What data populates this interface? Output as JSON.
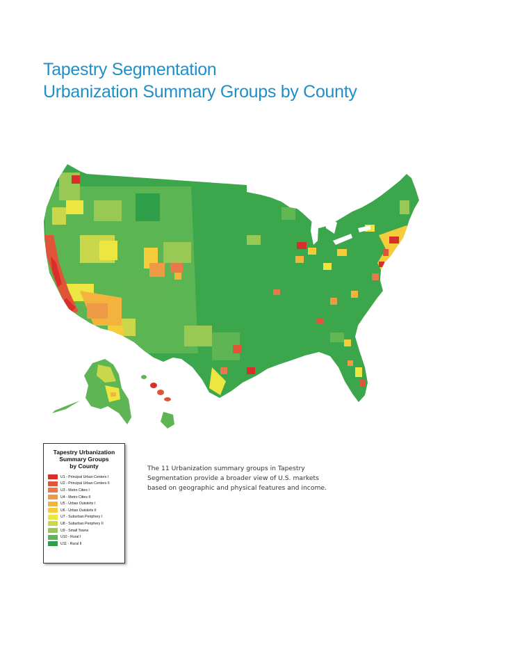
{
  "title": {
    "line1": "Tapestry Segmentation",
    "line2": "Urbanization Summary Groups by County"
  },
  "legend": {
    "title_line1": "Tapestry Urbanization",
    "title_line2": "Summary Groups",
    "title_line3": "by County",
    "items": [
      {
        "label": "U1 - Principal Urban Centers I",
        "color": "#d7302a"
      },
      {
        "label": "U2 - Principal Urban Centers II",
        "color": "#e0553a"
      },
      {
        "label": "U3 - Metro Cities I",
        "color": "#e8794a"
      },
      {
        "label": "U4 - Metro Cities II",
        "color": "#ef9a45"
      },
      {
        "label": "U5 - Urban Outskirts I",
        "color": "#f4b33c"
      },
      {
        "label": "U6 - Urban Outskirts II",
        "color": "#f5cd3a"
      },
      {
        "label": "U7 - Suburban Periphery I",
        "color": "#eee640"
      },
      {
        "label": "U8 - Suburban Periphery II",
        "color": "#c8d84a"
      },
      {
        "label": "U9 - Small Towns",
        "color": "#98c955"
      },
      {
        "label": "U10 - Rural I",
        "color": "#5fb553"
      },
      {
        "label": "U11 - Rural II",
        "color": "#2e9e48"
      }
    ]
  },
  "caption": {
    "line1": "The 11 Urbanization summary groups in Tapestry",
    "line2": "Segmentation provide a broader view of U.S. markets",
    "line3": "based on geographic and physical features and income."
  }
}
